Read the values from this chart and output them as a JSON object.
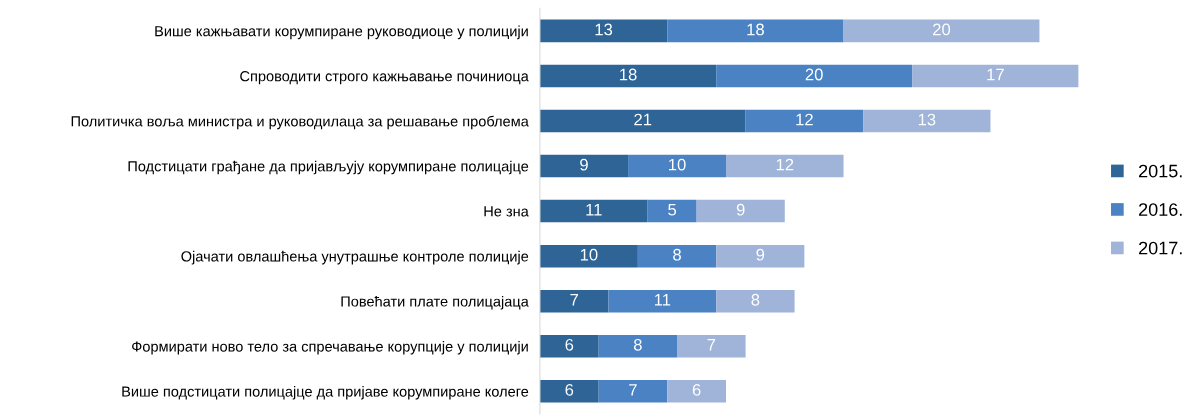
{
  "chart_data": {
    "type": "bar",
    "orientation": "horizontal",
    "stacked": true,
    "legend": "right",
    "data_labels": true,
    "categories": [
      "Више кажњавати корумпиране руководиоце у полицији",
      "Спроводити строго кажњавање починиоца",
      "Политичка воља министра и руководилаца за решавање проблема",
      "Подстицати грађане да пријављују корумпиране полицајце",
      "Не зна",
      "Ојачати овлашћења унутрашње контроле полиције",
      "Повећати плате полицајаца",
      "Формирати ново тело за спречавање корупције у полицији",
      "Више подстицати полицајце да пријаве корумпиране колеге"
    ],
    "series": [
      {
        "name": "2015.",
        "color": "#2f6496",
        "values": [
          13,
          18,
          21,
          9,
          11,
          10,
          7,
          6,
          6
        ]
      },
      {
        "name": "2016.",
        "color": "#4a82c3",
        "values": [
          18,
          20,
          12,
          10,
          5,
          8,
          11,
          8,
          7
        ]
      },
      {
        "name": "2017.",
        "color": "#9fb4d8",
        "values": [
          20,
          17,
          13,
          12,
          9,
          9,
          8,
          7,
          6
        ]
      }
    ]
  }
}
